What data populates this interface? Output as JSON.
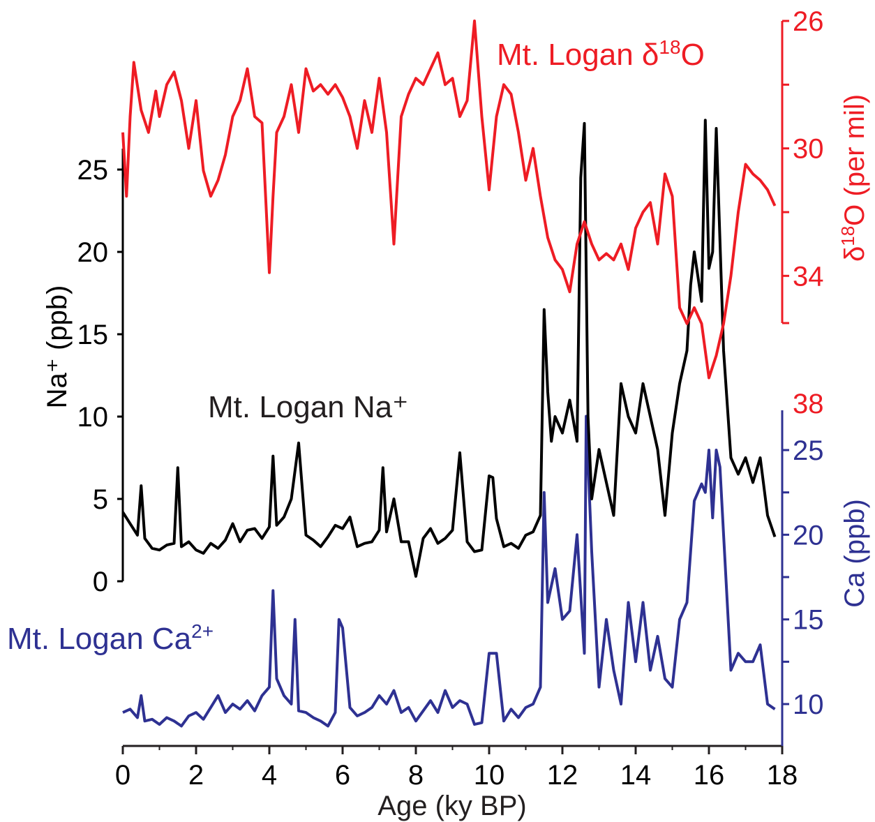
{
  "colors": {
    "na": "#000000",
    "d18o": "#ee1c24",
    "ca": "#2e3192"
  },
  "labels": {
    "x_axis_title": "Age (ky BP)",
    "na_axis_title": "Na⁺ (ppb)",
    "d18o_axis_delta": "δ",
    "d18o_axis_sup": "18",
    "d18o_axis_rest": "O (per mil)",
    "ca_axis_title": "Ca (ppb)",
    "na_series_label": "Mt. Logan Na⁺",
    "d18o_series_pre": "Mt. Logan δ",
    "d18o_series_sup": "18",
    "d18o_series_post": "O",
    "ca_series_pre": "Mt. Logan Ca",
    "ca_series_sup": "2+"
  },
  "chart_data": [
    {
      "type": "line",
      "name": "Mt. Logan Na⁺",
      "xlabel": "Age (ky BP)",
      "ylabel": "Na⁺ (ppb)",
      "xlim": [
        0,
        18
      ],
      "ylim": [
        0,
        25
      ],
      "x_ticks": [
        "0",
        "2",
        "4",
        "6",
        "8",
        "10",
        "12",
        "14",
        "16",
        "18"
      ],
      "y_ticks": [
        "0",
        "5",
        "10",
        "15",
        "20",
        "25"
      ],
      "x": [
        0.0,
        0.2,
        0.4,
        0.5,
        0.6,
        0.8,
        1.0,
        1.2,
        1.4,
        1.5,
        1.6,
        1.8,
        2.0,
        2.2,
        2.4,
        2.6,
        2.8,
        3.0,
        3.2,
        3.4,
        3.6,
        3.8,
        4.0,
        4.1,
        4.2,
        4.4,
        4.6,
        4.8,
        5.0,
        5.2,
        5.4,
        5.6,
        5.8,
        6.0,
        6.2,
        6.4,
        6.6,
        6.8,
        7.0,
        7.1,
        7.2,
        7.4,
        7.6,
        7.8,
        8.0,
        8.2,
        8.4,
        8.6,
        8.8,
        9.0,
        9.2,
        9.4,
        9.6,
        9.8,
        10.0,
        10.1,
        10.2,
        10.4,
        10.6,
        10.8,
        11.0,
        11.2,
        11.4,
        11.5,
        11.6,
        11.7,
        11.8,
        12.0,
        12.2,
        12.4,
        12.5,
        12.6,
        12.7,
        12.8,
        13.0,
        13.2,
        13.4,
        13.6,
        13.8,
        14.0,
        14.2,
        14.4,
        14.6,
        14.8,
        15.0,
        15.2,
        15.4,
        15.5,
        15.6,
        15.8,
        15.9,
        16.0,
        16.1,
        16.2,
        16.4,
        16.6,
        16.8,
        17.0,
        17.2,
        17.4,
        17.6,
        17.8
      ],
      "values": [
        4.2,
        3.5,
        2.8,
        5.8,
        2.6,
        2.0,
        1.9,
        2.2,
        2.3,
        6.9,
        2.1,
        2.4,
        1.9,
        1.7,
        2.3,
        2.0,
        2.5,
        3.5,
        2.4,
        3.1,
        3.2,
        2.6,
        3.3,
        7.6,
        3.4,
        3.9,
        5.0,
        8.4,
        2.8,
        2.5,
        2.1,
        2.7,
        3.4,
        3.2,
        3.9,
        2.1,
        2.3,
        2.4,
        3.1,
        6.9,
        3.0,
        5.0,
        2.4,
        2.4,
        0.3,
        2.6,
        3.2,
        2.3,
        2.6,
        3.1,
        7.8,
        2.4,
        1.8,
        1.9,
        6.4,
        6.3,
        3.8,
        2.1,
        2.3,
        2.0,
        2.8,
        3.0,
        4.0,
        16.5,
        11.5,
        8.5,
        10.0,
        9.0,
        11.0,
        8.5,
        24.5,
        27.8,
        10.0,
        5.0,
        8.0,
        6.0,
        4.0,
        12.0,
        10.0,
        9.0,
        12.0,
        10.0,
        8.0,
        4.0,
        9.0,
        12.0,
        14.0,
        18.0,
        20.0,
        17.0,
        28.0,
        19.0,
        20.0,
        27.5,
        14.0,
        7.5,
        6.5,
        7.5,
        6.0,
        7.5,
        4.0,
        2.7
      ]
    },
    {
      "type": "line",
      "name": "Mt. Logan δ¹⁸O",
      "ylabel": "δ¹⁸O (per mil)",
      "xlim": [
        0,
        18
      ],
      "ylim": [
        26,
        38
      ],
      "y_axis_reversed": true,
      "y_ticks": [
        "26",
        "30",
        "34",
        "38"
      ],
      "x": [
        0.0,
        0.1,
        0.2,
        0.3,
        0.5,
        0.7,
        0.9,
        1.0,
        1.2,
        1.4,
        1.6,
        1.8,
        2.0,
        2.2,
        2.4,
        2.6,
        2.8,
        3.0,
        3.2,
        3.4,
        3.6,
        3.8,
        4.0,
        4.1,
        4.2,
        4.4,
        4.6,
        4.8,
        5.0,
        5.2,
        5.4,
        5.6,
        5.8,
        6.0,
        6.2,
        6.4,
        6.6,
        6.8,
        7.0,
        7.2,
        7.4,
        7.6,
        7.8,
        8.0,
        8.2,
        8.4,
        8.6,
        8.8,
        9.0,
        9.2,
        9.4,
        9.6,
        9.8,
        10.0,
        10.2,
        10.4,
        10.6,
        10.8,
        11.0,
        11.2,
        11.4,
        11.6,
        11.8,
        12.0,
        12.2,
        12.4,
        12.6,
        12.8,
        13.0,
        13.2,
        13.4,
        13.6,
        13.8,
        14.0,
        14.2,
        14.4,
        14.6,
        14.8,
        15.0,
        15.2,
        15.4,
        15.6,
        15.8,
        16.0,
        16.2,
        16.4,
        16.6,
        16.8,
        17.0,
        17.2,
        17.4,
        17.6,
        17.8
      ],
      "values": [
        29.5,
        31.5,
        29.0,
        27.3,
        28.8,
        29.5,
        28.2,
        29.0,
        28.0,
        27.6,
        28.5,
        30.0,
        28.5,
        30.7,
        31.5,
        31.0,
        30.2,
        29.0,
        28.5,
        27.5,
        29.0,
        29.2,
        33.9,
        31.5,
        29.5,
        29.0,
        28.0,
        29.5,
        27.5,
        28.2,
        28.0,
        28.3,
        28.0,
        28.4,
        29.0,
        30.0,
        28.5,
        29.5,
        27.8,
        29.5,
        33.0,
        29.0,
        28.3,
        27.8,
        28.0,
        27.5,
        27.0,
        28.0,
        27.8,
        29.0,
        28.5,
        26.0,
        29.0,
        31.3,
        29.0,
        28.0,
        28.3,
        29.5,
        31.0,
        30.0,
        31.5,
        32.8,
        33.5,
        33.8,
        34.5,
        33.0,
        32.3,
        33.0,
        33.5,
        33.3,
        33.5,
        33.0,
        33.8,
        32.5,
        32.0,
        31.7,
        33.0,
        30.8,
        31.5,
        35.0,
        35.5,
        35.0,
        35.5,
        37.2,
        36.5,
        35.5,
        34.0,
        32.0,
        30.5,
        30.8,
        31.0,
        31.3,
        31.8
      ]
    },
    {
      "type": "line",
      "name": "Mt. Logan Ca²⁺",
      "ylabel": "Ca (ppb)",
      "xlim": [
        0,
        18
      ],
      "ylim": [
        8,
        28
      ],
      "y_ticks": [
        "10",
        "15",
        "20",
        "25"
      ],
      "x": [
        0.0,
        0.2,
        0.4,
        0.5,
        0.6,
        0.8,
        1.0,
        1.2,
        1.4,
        1.6,
        1.8,
        2.0,
        2.2,
        2.4,
        2.6,
        2.8,
        3.0,
        3.2,
        3.4,
        3.6,
        3.8,
        4.0,
        4.1,
        4.2,
        4.4,
        4.6,
        4.7,
        4.8,
        5.0,
        5.2,
        5.4,
        5.6,
        5.8,
        5.9,
        6.0,
        6.2,
        6.4,
        6.6,
        6.8,
        7.0,
        7.2,
        7.4,
        7.6,
        7.8,
        8.0,
        8.2,
        8.4,
        8.6,
        8.8,
        9.0,
        9.2,
        9.4,
        9.6,
        9.8,
        10.0,
        10.2,
        10.4,
        10.6,
        10.8,
        11.0,
        11.2,
        11.4,
        11.5,
        11.6,
        11.8,
        12.0,
        12.2,
        12.4,
        12.6,
        12.65,
        12.8,
        13.0,
        13.2,
        13.4,
        13.6,
        13.8,
        14.0,
        14.2,
        14.4,
        14.6,
        14.8,
        15.0,
        15.2,
        15.4,
        15.6,
        15.8,
        15.9,
        16.0,
        16.1,
        16.2,
        16.3,
        16.4,
        16.6,
        16.8,
        17.0,
        17.2,
        17.4,
        17.6,
        17.8
      ],
      "values": [
        9.5,
        9.7,
        9.2,
        10.5,
        9.0,
        9.1,
        8.8,
        9.2,
        9.0,
        8.7,
        9.3,
        9.5,
        9.1,
        9.8,
        10.5,
        9.5,
        10.0,
        9.7,
        10.2,
        9.6,
        10.5,
        11.0,
        16.7,
        11.5,
        10.5,
        10.0,
        15.0,
        9.6,
        9.5,
        9.2,
        9.0,
        8.7,
        9.5,
        15.0,
        14.5,
        9.8,
        9.3,
        9.5,
        9.8,
        10.5,
        10.0,
        10.8,
        9.5,
        9.8,
        9.0,
        9.6,
        10.2,
        9.5,
        10.8,
        9.8,
        10.2,
        10.0,
        8.8,
        8.9,
        13.0,
        13.0,
        9.0,
        9.7,
        9.2,
        9.8,
        10.0,
        11.0,
        22.5,
        16.0,
        18.0,
        15.0,
        15.5,
        20.0,
        13.0,
        27.0,
        19.0,
        11.0,
        15.0,
        12.0,
        10.0,
        16.0,
        12.5,
        16.0,
        12.0,
        14.0,
        11.5,
        11.0,
        15.0,
        16.0,
        22.0,
        23.0,
        22.5,
        25.0,
        21.0,
        25.0,
        24.0,
        20.0,
        12.0,
        13.0,
        12.5,
        12.5,
        13.5,
        10.0,
        9.7
      ]
    }
  ]
}
